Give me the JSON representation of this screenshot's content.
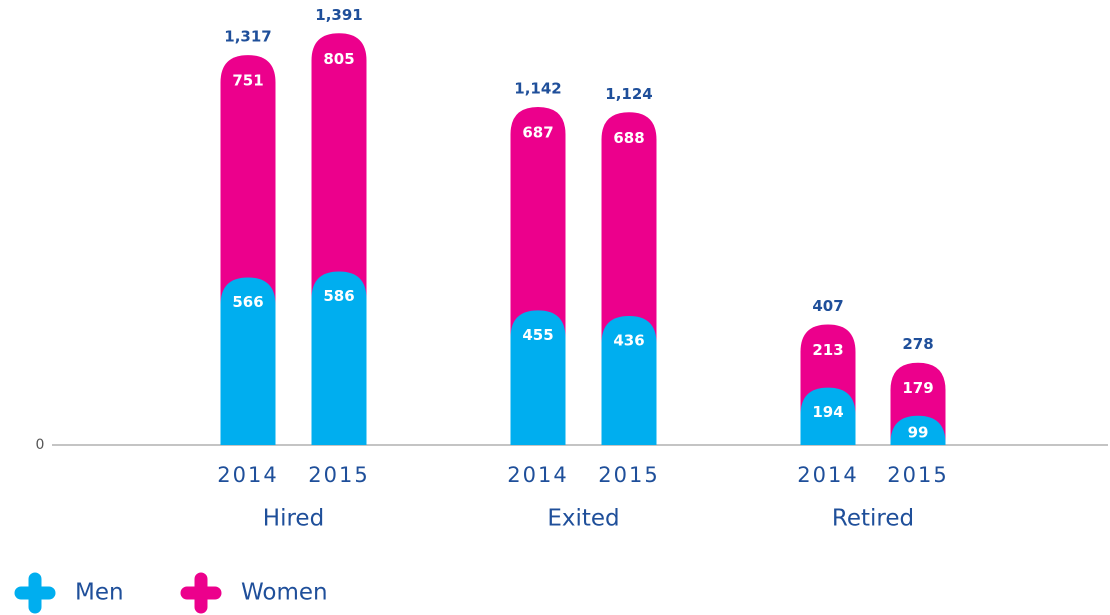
{
  "chart_data": {
    "type": "stacked-bar",
    "categories": [
      "2014",
      "2015",
      "2014",
      "2015",
      "2014",
      "2015"
    ],
    "groups": [
      "Hired",
      "Exited",
      "Retired"
    ],
    "series": [
      {
        "name": "Men",
        "color": "#00aeef",
        "values": [
          566,
          586,
          455,
          436,
          194,
          99
        ]
      },
      {
        "name": "Women",
        "color": "#ec008c",
        "values": [
          751,
          805,
          687,
          688,
          213,
          179
        ]
      }
    ],
    "totals": [
      1317,
      1391,
      1142,
      1124,
      407,
      278
    ],
    "total_labels": [
      "1,317",
      "1,391",
      "1,142",
      "1,124",
      "407",
      "278"
    ],
    "ylim": [
      0,
      1500
    ],
    "yticks": [
      0
    ],
    "legend": "bottom-left"
  }
}
